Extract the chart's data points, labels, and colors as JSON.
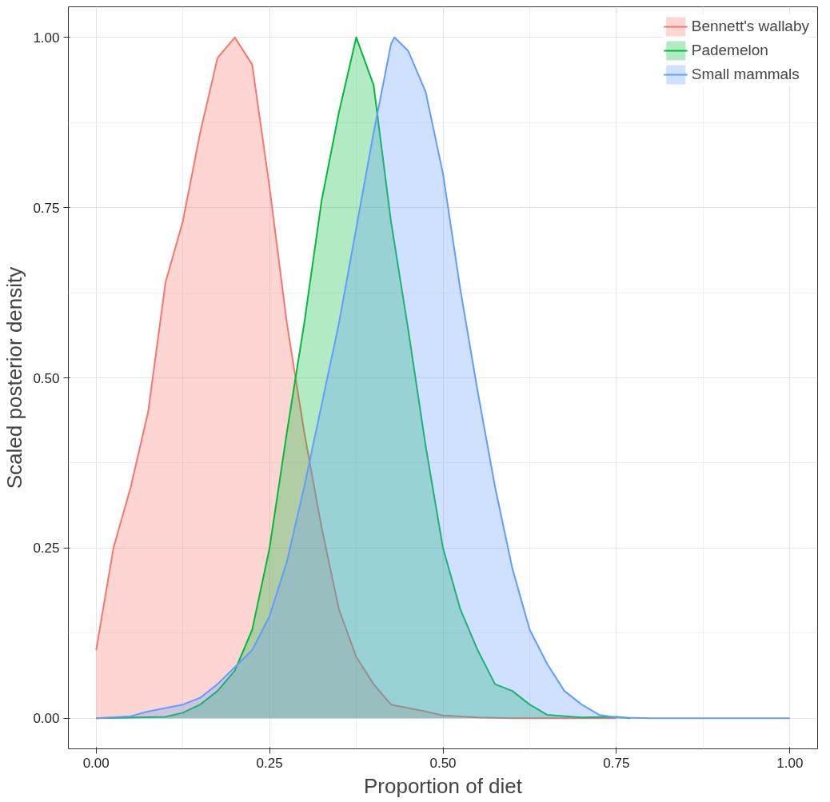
{
  "chart_data": {
    "type": "area",
    "xlabel": "Proportion of diet",
    "ylabel": "Scaled posterior density",
    "xlim": [
      -0.04,
      1.04
    ],
    "ylim": [
      -0.045,
      1.045
    ],
    "xticks": [
      {
        "value": 0,
        "label": "0.00"
      },
      {
        "value": 0.25,
        "label": "0.25"
      },
      {
        "value": 0.5,
        "label": "0.50"
      },
      {
        "value": 0.75,
        "label": "0.75"
      },
      {
        "value": 1,
        "label": "1.00"
      }
    ],
    "yticks": [
      {
        "value": 0,
        "label": "0.00"
      },
      {
        "value": 0.25,
        "label": "0.25"
      },
      {
        "value": 0.5,
        "label": "0.50"
      },
      {
        "value": 0.75,
        "label": "0.75"
      },
      {
        "value": 1,
        "label": "1.00"
      }
    ],
    "grid": true,
    "legend": "top right",
    "series": [
      {
        "name": "Bennett's wallaby",
        "color": "#f8766d",
        "x": [
          0,
          0.025,
          0.05,
          0.075,
          0.1,
          0.125,
          0.15,
          0.175,
          0.2,
          0.225,
          0.25,
          0.275,
          0.3,
          0.325,
          0.35,
          0.375,
          0.4,
          0.425,
          0.45,
          0.475,
          0.5,
          0.55,
          0.6,
          0.75
        ],
        "values": [
          0.1,
          0.25,
          0.34,
          0.45,
          0.64,
          0.73,
          0.86,
          0.97,
          1.0,
          0.96,
          0.78,
          0.58,
          0.42,
          0.28,
          0.16,
          0.09,
          0.05,
          0.02,
          0.015,
          0.01,
          0.004,
          0.001,
          0,
          0
        ]
      },
      {
        "name": "Pademelon",
        "color": "#00ba38",
        "x": [
          0,
          0.1,
          0.125,
          0.15,
          0.175,
          0.2,
          0.225,
          0.25,
          0.275,
          0.3,
          0.325,
          0.35,
          0.375,
          0.4,
          0.425,
          0.45,
          0.475,
          0.5,
          0.525,
          0.55,
          0.575,
          0.6,
          0.625,
          0.65,
          0.7,
          0.75,
          0.77
        ],
        "values": [
          0,
          0.002,
          0.008,
          0.02,
          0.04,
          0.07,
          0.13,
          0.25,
          0.42,
          0.58,
          0.76,
          0.89,
          1.0,
          0.93,
          0.73,
          0.57,
          0.4,
          0.25,
          0.16,
          0.1,
          0.05,
          0.04,
          0.02,
          0.005,
          0.001,
          0.002,
          0
        ]
      },
      {
        "name": "Small mammals",
        "color": "#619cff",
        "x": [
          0,
          0.05,
          0.075,
          0.1,
          0.125,
          0.15,
          0.175,
          0.2,
          0.225,
          0.25,
          0.275,
          0.3,
          0.325,
          0.35,
          0.375,
          0.4,
          0.425,
          0.43,
          0.45,
          0.475,
          0.5,
          0.525,
          0.55,
          0.575,
          0.6,
          0.625,
          0.65,
          0.675,
          0.7,
          0.725,
          0.75,
          0.8,
          1.0
        ],
        "values": [
          0,
          0.003,
          0.01,
          0.015,
          0.02,
          0.03,
          0.05,
          0.075,
          0.1,
          0.15,
          0.23,
          0.34,
          0.46,
          0.58,
          0.72,
          0.86,
          0.99,
          1.0,
          0.98,
          0.92,
          0.8,
          0.63,
          0.48,
          0.34,
          0.22,
          0.13,
          0.08,
          0.04,
          0.02,
          0.005,
          0.001,
          0,
          0
        ]
      }
    ]
  }
}
